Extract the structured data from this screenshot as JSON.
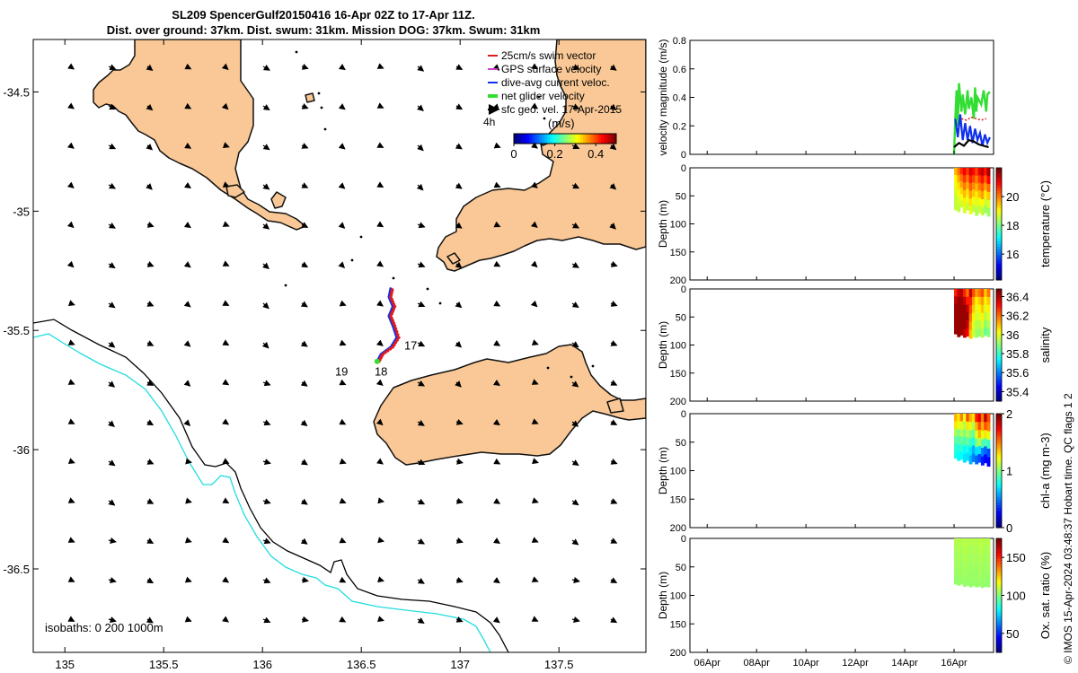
{
  "title_line1": "SL209 SpencerGulf20150416 16-Apr 02Z to 17-Apr 11Z.",
  "title_line2": "Dist. over ground: 37km. Dist. swum: 31km. Mission DOG: 37km. Swum: 31km",
  "credit": "© IMOS 15-Apr-2024 03:48:37 Hobart time. QC flags 1  2",
  "colors": {
    "land": "#fac896",
    "land_edge": "#111111",
    "isobath_black": "#000000",
    "isobath_cyan": "#22dde0",
    "swim": "#e11b1b",
    "gps": "#cc44cc",
    "current": "#1030ee",
    "net": "#33dd33",
    "geo": "#000000"
  },
  "chart_data": [
    {
      "type": "scatter",
      "name": "map",
      "x_ticks": [
        "135",
        "135.5",
        "136",
        "136.5",
        "137",
        "137.5"
      ],
      "x_tick_values": [
        135,
        135.5,
        136,
        136.5,
        137,
        137.5
      ],
      "y_ticks": [
        "-34.5",
        "-35",
        "-35.5",
        "-36",
        "-36.5"
      ],
      "y_tick_values": [
        -34.5,
        -35,
        -35.5,
        -36,
        -36.5
      ],
      "xlim": [
        134.84,
        137.94
      ],
      "ylim": [
        -36.85,
        -34.28
      ],
      "legend": [
        "25cm/s swim vector",
        "GPS surface velocity",
        "dive-avg current veloc.",
        "net glider velocity",
        "sfc geo. vel. 17-Apr-2015"
      ],
      "legend_scale_label": "4h",
      "colorbar_label": "(m/s)",
      "colorbar_ticks": [
        "0",
        "0.2",
        "0.4"
      ],
      "colorbar_range": [
        0,
        0.5
      ],
      "isobaths_label": "isobaths: 0   200  1000m",
      "day_labels": [
        {
          "text": "17",
          "lon": 136.75,
          "lat": -35.58
        },
        {
          "text": "18",
          "lon": 136.6,
          "lat": -35.69
        },
        {
          "text": "19",
          "lon": 136.4,
          "lat": -35.69
        }
      ],
      "track": [
        [
          136.58,
          -35.63
        ],
        [
          136.6,
          -35.6
        ],
        [
          136.65,
          -35.57
        ],
        [
          136.68,
          -35.53
        ],
        [
          136.66,
          -35.48
        ],
        [
          136.64,
          -35.44
        ],
        [
          136.66,
          -35.4
        ],
        [
          136.64,
          -35.36
        ],
        [
          136.65,
          -35.32
        ]
      ]
    },
    {
      "type": "line",
      "name": "velocity",
      "ylabel": "velocity magnitude (m/s)",
      "ylim": [
        0,
        0.8
      ],
      "y_ticks": [
        "0",
        "0.2",
        "0.4",
        "0.6",
        "0.8"
      ],
      "series": [
        {
          "color": "#33dd33",
          "x": [
            16.0,
            16.05,
            16.1,
            16.15,
            16.2,
            16.3,
            16.35,
            16.45,
            16.55,
            16.6,
            16.7,
            16.8,
            16.85,
            16.9,
            16.95,
            17.1,
            17.2,
            17.3,
            17.35,
            17.45
          ],
          "values": [
            0.0,
            0.25,
            0.45,
            0.2,
            0.5,
            0.3,
            0.42,
            0.28,
            0.45,
            0.32,
            0.4,
            0.25,
            0.47,
            0.3,
            0.4,
            0.35,
            0.45,
            0.3,
            0.42,
            0.44
          ]
        },
        {
          "color": "#1030ee",
          "x": [
            16.05,
            16.15,
            16.25,
            16.35,
            16.45,
            16.55,
            16.65,
            16.75,
            16.85,
            16.95,
            17.05,
            17.15,
            17.25,
            17.35,
            17.45
          ],
          "values": [
            0.25,
            0.12,
            0.28,
            0.1,
            0.22,
            0.1,
            0.2,
            0.08,
            0.18,
            0.1,
            0.15,
            0.06,
            0.14,
            0.08,
            0.12
          ]
        },
        {
          "color": "#e11b1b",
          "x": [
            16.3,
            16.5,
            16.7,
            16.9,
            17.1,
            17.3
          ],
          "values": [
            0.25,
            0.24,
            0.26,
            0.25,
            0.24,
            0.25
          ]
        },
        {
          "color": "#000000",
          "x": [
            16.0,
            16.2,
            16.4,
            16.6,
            16.8,
            17.0,
            17.2,
            17.4
          ],
          "values": [
            0.05,
            0.08,
            0.06,
            0.1,
            0.09,
            0.07,
            0.06,
            0.05
          ]
        }
      ]
    },
    {
      "type": "heatmap",
      "name": "temperature",
      "ylabel": "Depth (m)",
      "colorbar_label": "temperature (°C)",
      "colorbar_ticks": [
        "16",
        "18",
        "20"
      ],
      "colorbar_tick_values": [
        16,
        18,
        20
      ],
      "clim": [
        14.2,
        22.0
      ],
      "ylim": [
        0,
        200
      ],
      "y_ticks": [
        "0",
        "50",
        "100",
        "150",
        "200"
      ],
      "x_range": [
        16.0,
        17.45
      ],
      "depth_profile": [
        75,
        78,
        70,
        80,
        75,
        82,
        78,
        85,
        80,
        84,
        80,
        86
      ],
      "grid": [
        [
          19.6,
          20.1,
          20.7,
          21.1,
          20.6,
          21.3,
          21.0,
          20.5,
          21.2,
          21.5,
          20.9,
          21.7
        ],
        [
          19.1,
          19.7,
          20.2,
          20.6,
          20.1,
          20.8,
          20.5,
          20.0,
          20.6,
          20.9,
          20.3,
          21.0
        ],
        [
          18.9,
          19.3,
          19.8,
          20.1,
          19.7,
          20.3,
          20.0,
          19.6,
          20.1,
          20.3,
          19.8,
          20.2
        ],
        [
          18.7,
          19.0,
          19.4,
          19.6,
          19.3,
          19.8,
          19.5,
          19.2,
          19.6,
          19.8,
          19.2,
          19.5
        ],
        [
          18.6,
          18.8,
          19.0,
          19.2,
          18.9,
          19.3,
          19.0,
          18.8,
          19.0,
          19.1,
          18.7,
          18.8
        ],
        [
          18.6,
          18.6,
          18.7,
          18.8,
          18.6,
          18.9,
          18.6,
          18.5,
          18.6,
          18.6,
          18.3,
          18.3
        ]
      ]
    },
    {
      "type": "heatmap",
      "name": "salinity",
      "ylabel": "Depth (m)",
      "colorbar_label": "salinity",
      "colorbar_ticks": [
        "35.4",
        "35.6",
        "35.8",
        "36",
        "36.2",
        "36.4"
      ],
      "colorbar_tick_values": [
        35.4,
        35.6,
        35.8,
        36.0,
        36.2,
        36.4
      ],
      "clim": [
        35.3,
        36.48
      ],
      "ylim": [
        0,
        200
      ],
      "y_ticks": [
        "0",
        "50",
        "100",
        "150",
        "200"
      ],
      "x_range": [
        16.0,
        17.45
      ],
      "depth_profile": [
        80,
        85,
        82,
        86,
        84,
        88,
        85,
        86,
        84,
        86,
        82,
        85
      ],
      "grid": [
        [
          36.3,
          36.4,
          36.42,
          36.3,
          36.2,
          36.4,
          36.25,
          36.15,
          36.2,
          36.25,
          36.1,
          36.2
        ],
        [
          36.4,
          36.45,
          36.45,
          36.4,
          36.3,
          36.3,
          36.15,
          36.05,
          36.1,
          36.15,
          36.05,
          36.1
        ],
        [
          36.45,
          36.45,
          36.45,
          36.45,
          36.4,
          36.25,
          36.1,
          36.0,
          36.05,
          36.1,
          36.0,
          36.05
        ],
        [
          36.45,
          36.45,
          36.45,
          36.45,
          36.45,
          36.2,
          36.05,
          35.98,
          36.0,
          36.05,
          35.95,
          36.0
        ],
        [
          36.45,
          36.45,
          36.45,
          36.45,
          36.4,
          36.15,
          36.0,
          35.95,
          35.95,
          36.0,
          35.9,
          35.95
        ],
        [
          36.45,
          36.45,
          36.45,
          36.4,
          36.35,
          36.1,
          35.98,
          35.92,
          35.92,
          35.95,
          35.85,
          35.9
        ]
      ]
    },
    {
      "type": "heatmap",
      "name": "chl-a",
      "ylabel": "Depth (m)",
      "colorbar_label": "chl-a (mg m-3)",
      "colorbar_ticks": [
        "0",
        "1",
        "2"
      ],
      "colorbar_tick_values": [
        0,
        1,
        2
      ],
      "clim": [
        0,
        2
      ],
      "ylim": [
        0,
        200
      ],
      "y_ticks": [
        "0",
        "50",
        "100",
        "150",
        "200"
      ],
      "x_range": [
        16.0,
        17.45
      ],
      "depth_profile": [
        78,
        82,
        80,
        85,
        82,
        88,
        84,
        88,
        85,
        90,
        86,
        92
      ],
      "grid": [
        [
          1.4,
          1.3,
          1.5,
          1.2,
          1.6,
          1.4,
          1.3,
          1.7,
          1.8,
          1.5,
          1.9,
          1.6
        ],
        [
          1.3,
          1.2,
          1.2,
          1.1,
          1.3,
          1.2,
          1.1,
          1.4,
          1.6,
          1.4,
          1.6,
          1.5
        ],
        [
          1.1,
          1.0,
          1.1,
          1.0,
          1.1,
          1.0,
          0.95,
          1.2,
          1.4,
          1.2,
          1.3,
          1.2
        ],
        [
          0.95,
          0.9,
          0.95,
          0.9,
          0.95,
          0.85,
          0.8,
          1.0,
          1.1,
          0.9,
          0.9,
          0.85
        ],
        [
          0.85,
          0.8,
          0.85,
          0.75,
          0.8,
          0.7,
          0.6,
          0.7,
          0.7,
          0.5,
          0.45,
          0.4
        ],
        [
          0.8,
          0.75,
          0.75,
          0.7,
          0.7,
          0.6,
          0.5,
          0.45,
          0.4,
          0.3,
          0.25,
          0.25
        ]
      ]
    },
    {
      "type": "heatmap",
      "name": "oxygen",
      "ylabel": "Depth (m)",
      "colorbar_label": "Ox. sat. ratio (%)",
      "colorbar_ticks": [
        "50",
        "100",
        "150"
      ],
      "colorbar_tick_values": [
        50,
        100,
        150
      ],
      "clim": [
        25,
        175
      ],
      "ylim": [
        0,
        200
      ],
      "y_ticks": [
        "0",
        "50",
        "100",
        "150",
        "200"
      ],
      "x_range": [
        16.0,
        17.45
      ],
      "depth_profile": [
        80,
        82,
        80,
        84,
        82,
        85,
        83,
        85,
        84,
        86,
        84,
        85
      ],
      "grid": [
        [
          107,
          108,
          107,
          109,
          108,
          107,
          108,
          107,
          109,
          108,
          107,
          108
        ],
        [
          106,
          107,
          106,
          108,
          107,
          106,
          107,
          106,
          108,
          107,
          106,
          107
        ],
        [
          105,
          106,
          105,
          107,
          106,
          105,
          106,
          105,
          107,
          106,
          105,
          106
        ],
        [
          105,
          105,
          104,
          106,
          105,
          104,
          105,
          104,
          106,
          105,
          104,
          105
        ],
        [
          104,
          104,
          104,
          105,
          104,
          104,
          104,
          104,
          105,
          104,
          104,
          104
        ],
        [
          103,
          103,
          103,
          104,
          103,
          103,
          104,
          103,
          104,
          103,
          103,
          103
        ]
      ]
    }
  ],
  "time_axis": {
    "ticks": [
      "06Apr",
      "08Apr",
      "10Apr",
      "12Apr",
      "14Apr",
      "16Apr"
    ],
    "tick_values": [
      6,
      8,
      10,
      12,
      14,
      16
    ],
    "xlim": [
      5.3,
      17.6
    ]
  }
}
